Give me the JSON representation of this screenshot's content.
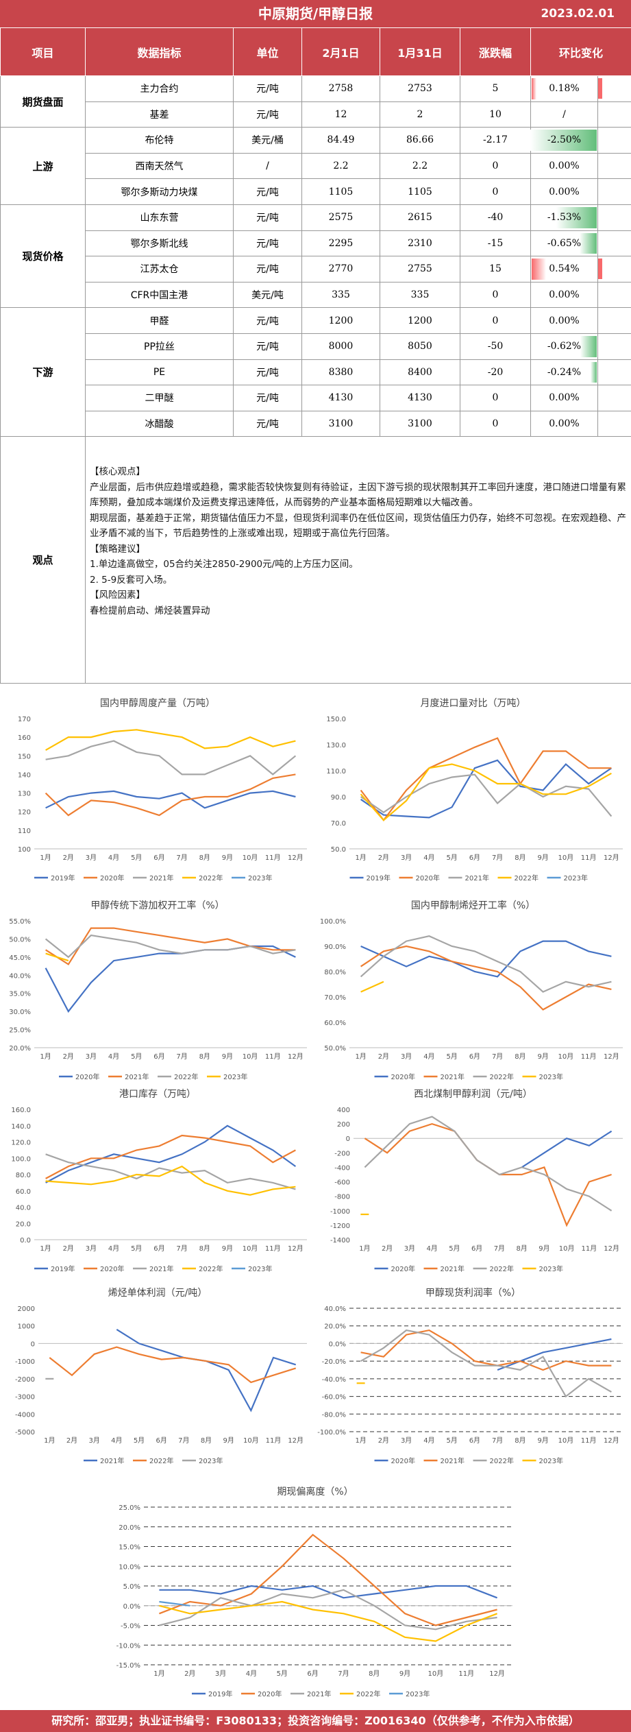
{
  "header": {
    "title": "中原期货/甲醇日报",
    "date": "2023.02.01"
  },
  "table": {
    "columns": [
      "项目",
      "数据指标",
      "单位",
      "2月1日",
      "1月31日",
      "涨跌幅",
      "环比变化"
    ],
    "rows": [
      {
        "group": "期货盘面",
        "span": 2,
        "indicator": "主力合约",
        "unit": "元/吨",
        "d1": "2758",
        "d2": "2753",
        "change": "5",
        "pct": "0.18%",
        "pct_value": 0.18
      },
      {
        "indicator": "基差",
        "unit": "元/吨",
        "d1": "12",
        "d2": "2",
        "change": "10",
        "pct": "/",
        "pct_value": 0
      },
      {
        "group": "上游",
        "span": 3,
        "indicator": "布伦特",
        "unit": "美元/桶",
        "d1": "84.49",
        "d2": "86.66",
        "change": "-2.17",
        "pct": "-2.50%",
        "pct_value": -2.5
      },
      {
        "indicator": "西南天然气",
        "unit": "/",
        "d1": "2.2",
        "d2": "2.2",
        "change": "0",
        "pct": "0.00%",
        "pct_value": 0
      },
      {
        "indicator": "鄂尔多斯动力块煤",
        "unit": "元/吨",
        "d1": "1105",
        "d2": "1105",
        "change": "0",
        "pct": "0.00%",
        "pct_value": 0
      },
      {
        "group": "现货价格",
        "span": 4,
        "indicator": "山东东营",
        "unit": "元/吨",
        "d1": "2575",
        "d2": "2615",
        "change": "-40",
        "pct": "-1.53%",
        "pct_value": -1.53
      },
      {
        "indicator": "鄂尔多斯北线",
        "unit": "元/吨",
        "d1": "2295",
        "d2": "2310",
        "change": "-15",
        "pct": "-0.65%",
        "pct_value": -0.65
      },
      {
        "indicator": "江苏太仓",
        "unit": "元/吨",
        "d1": "2770",
        "d2": "2755",
        "change": "15",
        "pct": "0.54%",
        "pct_value": 0.54
      },
      {
        "indicator": "CFR中国主港",
        "unit": "美元/吨",
        "d1": "335",
        "d2": "335",
        "change": "0",
        "pct": "0.00%",
        "pct_value": 0
      },
      {
        "group": "下游",
        "span": 5,
        "indicator": "甲醛",
        "unit": "元/吨",
        "d1": "1200",
        "d2": "1200",
        "change": "0",
        "pct": "0.00%",
        "pct_value": 0
      },
      {
        "indicator": "PP拉丝",
        "unit": "元/吨",
        "d1": "8000",
        "d2": "8050",
        "change": "-50",
        "pct": "-0.62%",
        "pct_value": -0.62
      },
      {
        "indicator": "PE",
        "unit": "元/吨",
        "d1": "8380",
        "d2": "8400",
        "change": "-20",
        "pct": "-0.24%",
        "pct_value": -0.24
      },
      {
        "indicator": "二甲醚",
        "unit": "元/吨",
        "d1": "4130",
        "d2": "4130",
        "change": "0",
        "pct": "0.00%",
        "pct_value": 0
      },
      {
        "indicator": "冰醋酸",
        "unit": "元/吨",
        "d1": "3100",
        "d2": "3100",
        "change": "0",
        "pct": "0.00%",
        "pct_value": 0
      }
    ]
  },
  "viewpoint": {
    "label": "观点",
    "lines": [
      "【核心观点】",
      "产业层面，后市供应趋增或趋稳，需求能否较快恢复则有待验证，主因下游亏损的现状限制其开工率回升速度，港口随进口增量有累库预期，叠加成本端煤价及运费支撑迅速降低，从而弱势的产业基本面格局短期难以大幅改善。",
      "期现层面，基差趋于正常，期货锚估值压力不显，但现货利润率仍在低位区间，现货估值压力仍存，始终不可忽视。在宏观趋稳、产业矛盾不减的当下，节后趋势性的上涨或难出现，短期或于高位先行回落。",
      "【策略建议】",
      "1.单边逢高做空，05合约关注2850-2900元/吨的上方压力区间。",
      "2. 5-9反套可入场。",
      "【风险因素】",
      "春检提前启动、烯烃装置异动"
    ]
  },
  "footer": "研究所：邵亚男；执业证书编号：F3080133；投资咨询编号：Z0016340（仅供参考，不作为入市依据）",
  "colors": {
    "brand": "#c8454b",
    "y2019": "#4472c4",
    "y2020": "#ed7d31",
    "y2021": "#a5a5a5",
    "y2022": "#ffc000",
    "y2023": "#5b9bd5",
    "neg_bar": "#63be7b",
    "pos_bar": "#f8696b"
  },
  "months": [
    "1月",
    "2月",
    "3月",
    "4月",
    "5月",
    "6月",
    "7月",
    "8月",
    "9月",
    "10月",
    "11月",
    "12月"
  ],
  "chart_data": [
    {
      "id": "c1",
      "type": "line",
      "title": "国内甲醇周度产量（万吨）",
      "ylim": [
        100,
        170
      ],
      "yticks": [
        100,
        110,
        120,
        130,
        140,
        150,
        160,
        170
      ],
      "ytick_labels": [
        "100",
        "110",
        "120",
        "130",
        "140",
        "150",
        "160",
        "170"
      ],
      "series": [
        {
          "name": "2019年",
          "color": "#4472c4",
          "values": [
            122,
            128,
            130,
            131,
            128,
            127,
            130,
            122,
            126,
            130,
            131,
            128
          ]
        },
        {
          "name": "2020年",
          "color": "#ed7d31",
          "values": [
            130,
            118,
            126,
            125,
            122,
            118,
            126,
            128,
            128,
            132,
            138,
            140
          ]
        },
        {
          "name": "2021年",
          "color": "#a5a5a5",
          "values": [
            148,
            150,
            155,
            158,
            152,
            150,
            140,
            140,
            145,
            150,
            140,
            150
          ]
        },
        {
          "name": "2022年",
          "color": "#ffc000",
          "values": [
            153,
            160,
            160,
            163,
            164,
            162,
            160,
            154,
            155,
            160,
            155,
            158
          ]
        },
        {
          "name": "2023年",
          "color": "#5b9bd5",
          "values": []
        }
      ]
    },
    {
      "id": "c2",
      "type": "line",
      "title": "月度进口量对比（万吨）",
      "ylim": [
        50,
        150
      ],
      "yticks": [
        50,
        70,
        90,
        110,
        130,
        150
      ],
      "ytick_labels": [
        "50.0",
        "70.0",
        "90.0",
        "110.0",
        "130.0",
        "150.0"
      ],
      "series": [
        {
          "name": "2019年",
          "color": "#4472c4",
          "values": [
            88,
            76,
            75,
            74,
            82,
            112,
            118,
            98,
            95,
            115,
            100,
            112
          ]
        },
        {
          "name": "2020年",
          "color": "#ed7d31",
          "values": [
            95,
            72,
            95,
            112,
            120,
            128,
            135,
            100,
            125,
            125,
            112,
            112
          ]
        },
        {
          "name": "2021年",
          "color": "#a5a5a5",
          "values": [
            90,
            78,
            90,
            100,
            105,
            107,
            85,
            100,
            90,
            98,
            96,
            75
          ]
        },
        {
          "name": "2022年",
          "color": "#ffc000",
          "values": [
            92,
            72,
            87,
            112,
            115,
            110,
            100,
            100,
            92,
            92,
            98,
            108
          ]
        },
        {
          "name": "2023年",
          "color": "#5b9bd5",
          "values": []
        }
      ]
    },
    {
      "id": "c3",
      "type": "line",
      "title": "甲醇传统下游加权开工率（%）",
      "ylim": [
        20,
        55
      ],
      "yticks": [
        20,
        25,
        30,
        35,
        40,
        45,
        50,
        55
      ],
      "ytick_labels": [
        "20.0%",
        "25.0%",
        "30.0%",
        "35.0%",
        "40.0%",
        "45.0%",
        "50.0%",
        "55.0%"
      ],
      "series": [
        {
          "name": "2020年",
          "color": "#4472c4",
          "values": [
            42,
            30,
            38,
            44,
            45,
            46,
            46,
            47,
            47,
            48,
            48,
            45
          ]
        },
        {
          "name": "2021年",
          "color": "#ed7d31",
          "values": [
            47,
            43,
            53,
            53,
            52,
            51,
            50,
            49,
            50,
            48,
            47,
            47
          ]
        },
        {
          "name": "2022年",
          "color": "#a5a5a5",
          "values": [
            50,
            45,
            51,
            50,
            49,
            47,
            46,
            47,
            47,
            48,
            46,
            47
          ]
        },
        {
          "name": "2023年",
          "color": "#ffc000",
          "values": [
            46,
            44
          ]
        }
      ]
    },
    {
      "id": "c4",
      "type": "line",
      "title": "国内甲醇制烯烃开工率（%）",
      "ylim": [
        50,
        100
      ],
      "yticks": [
        50,
        60,
        70,
        80,
        90,
        100
      ],
      "ytick_labels": [
        "50.0%",
        "60.0%",
        "70.0%",
        "80.0%",
        "90.0%",
        "100.0%"
      ],
      "series": [
        {
          "name": "2020年",
          "color": "#4472c4",
          "values": [
            90,
            86,
            82,
            86,
            84,
            80,
            78,
            88,
            92,
            92,
            88,
            86
          ]
        },
        {
          "name": "2021年",
          "color": "#ed7d31",
          "values": [
            82,
            88,
            90,
            88,
            84,
            82,
            80,
            74,
            65,
            70,
            75,
            73
          ]
        },
        {
          "name": "2022年",
          "color": "#a5a5a5",
          "values": [
            78,
            86,
            92,
            94,
            90,
            88,
            84,
            80,
            72,
            76,
            74,
            76
          ]
        },
        {
          "name": "2023年",
          "color": "#ffc000",
          "values": [
            72,
            76
          ]
        }
      ]
    },
    {
      "id": "c5",
      "type": "line",
      "title": "港口库存（万吨）",
      "ylim": [
        0,
        160
      ],
      "yticks": [
        0,
        20,
        40,
        60,
        80,
        100,
        120,
        140,
        160
      ],
      "ytick_labels": [
        "0.0",
        "20.0",
        "40.0",
        "60.0",
        "80.0",
        "100.0",
        "120.0",
        "140.0",
        "160.0"
      ],
      "series": [
        {
          "name": "2019年",
          "color": "#4472c4",
          "values": [
            70,
            85,
            95,
            105,
            100,
            95,
            105,
            120,
            140,
            125,
            110,
            90
          ]
        },
        {
          "name": "2020年",
          "color": "#ed7d31",
          "values": [
            75,
            90,
            100,
            100,
            110,
            115,
            128,
            125,
            120,
            115,
            95,
            110
          ]
        },
        {
          "name": "2021年",
          "color": "#a5a5a5",
          "values": [
            105,
            95,
            90,
            85,
            75,
            88,
            82,
            85,
            70,
            75,
            70,
            62
          ]
        },
        {
          "name": "2022年",
          "color": "#ffc000",
          "values": [
            72,
            70,
            68,
            72,
            80,
            78,
            90,
            70,
            60,
            55,
            62,
            65
          ]
        },
        {
          "name": "2023年",
          "color": "#5b9bd5",
          "values": []
        }
      ]
    },
    {
      "id": "c6",
      "type": "line",
      "title": "西北煤制甲醇利润（元/吨）",
      "ylim": [
        -1400,
        400
      ],
      "yticks": [
        -1400,
        -1200,
        -1000,
        -800,
        -600,
        -400,
        -200,
        0,
        200,
        400
      ],
      "ytick_labels": [
        "-1400",
        "-1200",
        "-1000",
        "-800",
        "-600",
        "-400",
        "-200",
        "0",
        "200",
        "400"
      ],
      "series": [
        {
          "name": "2020年",
          "color": "#4472c4",
          "values": [
            null,
            null,
            null,
            null,
            null,
            null,
            null,
            -400,
            -200,
            0,
            -100,
            100
          ]
        },
        {
          "name": "2021年",
          "color": "#ed7d31",
          "values": [
            0,
            -200,
            100,
            200,
            100,
            -300,
            -500,
            -500,
            -400,
            -1200,
            -600,
            -500
          ]
        },
        {
          "name": "2022年",
          "color": "#a5a5a5",
          "values": [
            -400,
            -100,
            200,
            300,
            100,
            -300,
            -500,
            -400,
            -500,
            -700,
            -800,
            -1000
          ]
        },
        {
          "name": "2023年",
          "color": "#ffc000",
          "values": [
            -1050
          ]
        }
      ]
    },
    {
      "id": "c7",
      "type": "line",
      "title": "烯烃单体利润（元/吨）",
      "ylim": [
        -5000,
        2000
      ],
      "yticks": [
        -5000,
        -4000,
        -3000,
        -2000,
        -1000,
        0,
        1000,
        2000
      ],
      "ytick_labels": [
        "-5000",
        "-4000",
        "-3000",
        "-2000",
        "-1000",
        "0",
        "1000",
        "2000"
      ],
      "series": [
        {
          "name": "2021年",
          "color": "#4472c4",
          "values": [
            null,
            null,
            null,
            800,
            0,
            -400,
            -800,
            -1000,
            -1500,
            -3800,
            -800,
            -1200
          ]
        },
        {
          "name": "2022年",
          "color": "#ed7d31",
          "values": [
            -800,
            -1800,
            -600,
            -200,
            -600,
            -900,
            -800,
            -1000,
            -1200,
            -2200,
            -1800,
            -1400
          ]
        },
        {
          "name": "2023年",
          "color": "#a5a5a5",
          "values": [
            -2000
          ]
        }
      ]
    },
    {
      "id": "c8",
      "type": "line",
      "title": "甲醇现货利润率（%）",
      "ylim": [
        -100,
        40
      ],
      "yticks": [
        -100,
        -80,
        -60,
        -40,
        -20,
        0,
        20,
        40
      ],
      "ytick_labels": [
        "-100.0%",
        "-80.0%",
        "-60.0%",
        "-40.0%",
        "-20.0%",
        "0.0%",
        "20.0%",
        "40.0%"
      ],
      "series": [
        {
          "name": "2020年",
          "color": "#4472c4",
          "values": [
            null,
            null,
            null,
            null,
            null,
            null,
            -30,
            -20,
            -10,
            -5,
            0,
            5
          ]
        },
        {
          "name": "2021年",
          "color": "#ed7d31",
          "values": [
            -10,
            -15,
            10,
            15,
            0,
            -20,
            -25,
            -20,
            -30,
            -20,
            -25,
            -25
          ]
        },
        {
          "name": "2022年",
          "color": "#a5a5a5",
          "values": [
            -20,
            -5,
            15,
            10,
            -10,
            -25,
            -25,
            -30,
            -15,
            -60,
            -40,
            -55
          ]
        },
        {
          "name": "2023年",
          "color": "#ffc000",
          "values": [
            -45
          ]
        }
      ]
    },
    {
      "id": "c9",
      "type": "line",
      "title": "期现偏离度（%）",
      "ylim": [
        -15,
        25
      ],
      "yticks": [
        -15,
        -10,
        -5,
        0,
        5,
        10,
        15,
        20,
        25
      ],
      "ytick_labels": [
        "-15.0%",
        "-10.0%",
        "-5.0%",
        "0.0%",
        "5.0%",
        "10.0%",
        "15.0%",
        "20.0%",
        "25.0%"
      ],
      "series": [
        {
          "name": "2019年",
          "color": "#4472c4",
          "values": [
            4,
            4,
            3,
            5,
            4,
            5,
            2,
            3,
            4,
            5,
            5,
            2
          ]
        },
        {
          "name": "2020年",
          "color": "#ed7d31",
          "values": [
            -2,
            1,
            0,
            3,
            10,
            18,
            12,
            5,
            -2,
            -5,
            -3,
            -1
          ]
        },
        {
          "name": "2021年",
          "color": "#a5a5a5",
          "values": [
            -5,
            -3,
            2,
            0,
            3,
            2,
            4,
            0,
            -5,
            -6,
            -4,
            -3
          ]
        },
        {
          "name": "2022年",
          "color": "#ffc000",
          "values": [
            0,
            -2,
            -1,
            0,
            1,
            -1,
            -2,
            -4,
            -8,
            -9,
            -5,
            -2
          ]
        },
        {
          "name": "2023年",
          "color": "#5b9bd5",
          "values": [
            1,
            0
          ]
        }
      ]
    }
  ]
}
